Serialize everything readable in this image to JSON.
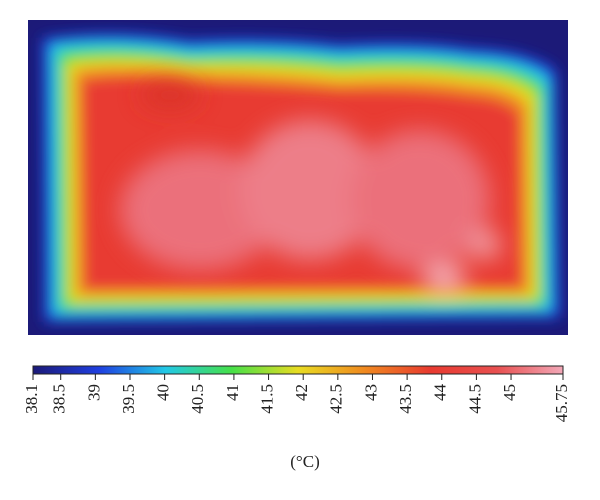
{
  "colorbar": {
    "lim": [
      38.1,
      45.75
    ],
    "ticks": [
      38.1,
      38.5,
      39,
      39.5,
      40,
      40.5,
      41,
      41.5,
      42,
      42.5,
      43,
      43.5,
      44,
      44.5,
      45,
      45.75
    ],
    "colors": [
      "#1c1a78",
      "#1f3fe0",
      "#22c8e6",
      "#46e048",
      "#e8dc22",
      "#f08a20",
      "#e83a30",
      "#e85050",
      "#f2a8b8"
    ],
    "label": "(°C)"
  }
}
